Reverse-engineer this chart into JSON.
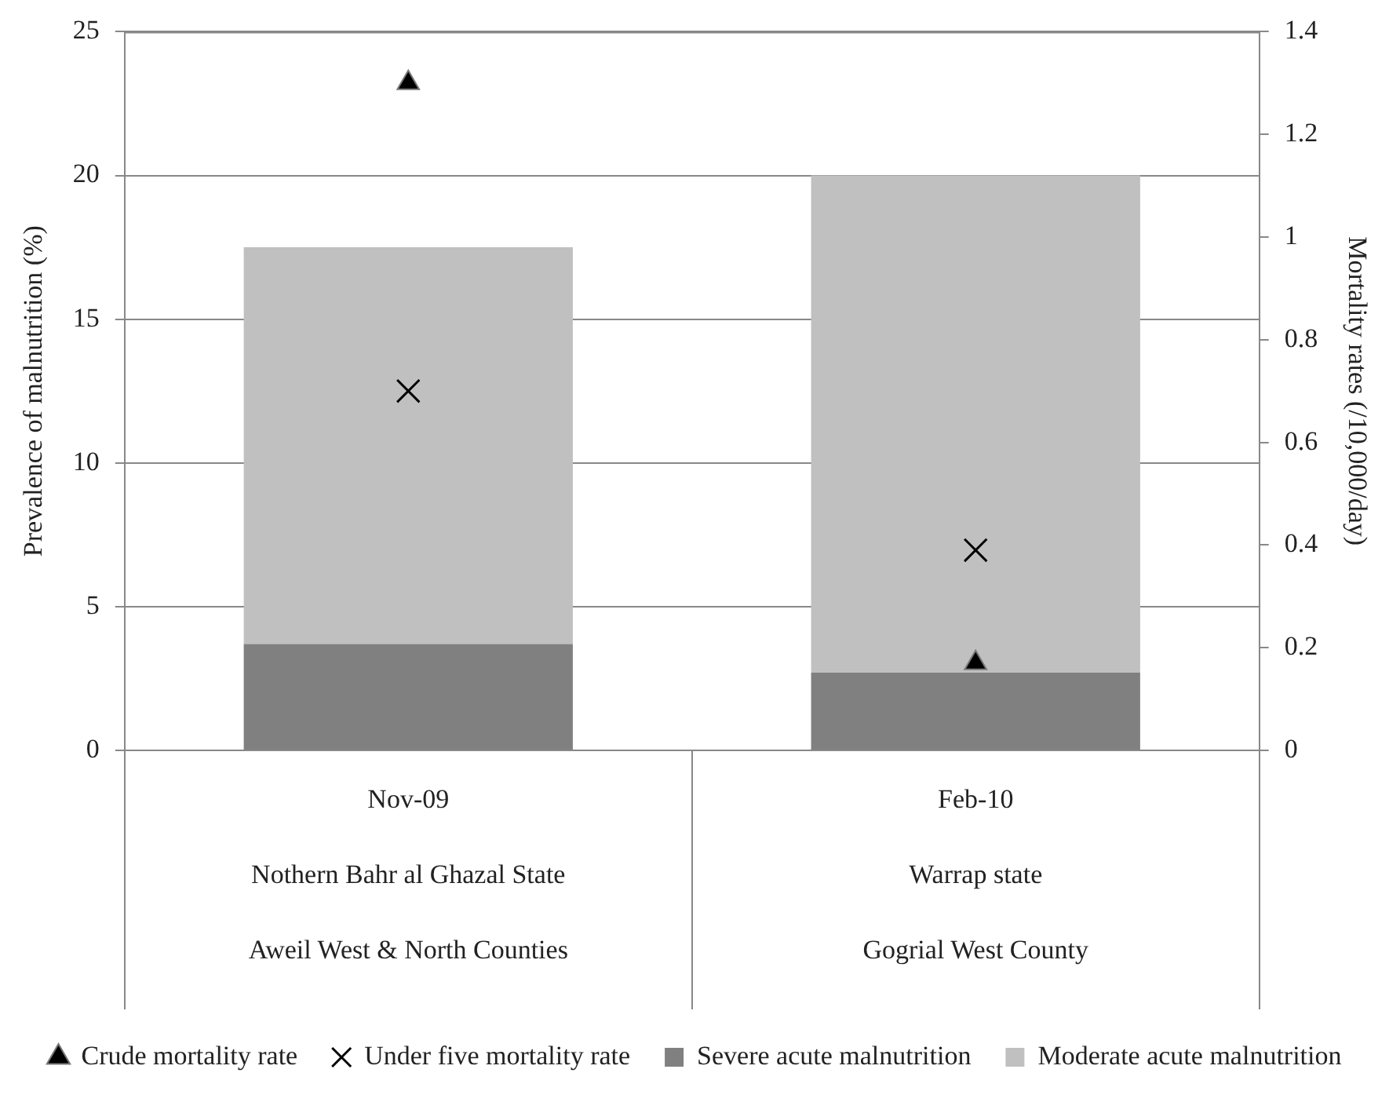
{
  "chart_data": {
    "type": "bar",
    "stacked": true,
    "categories": [
      "Nov-09\nNothern Bahr al Ghazal State\nAweil West & North Counties",
      "Feb-10\nWarrap state\nGogrial West County"
    ],
    "series": [
      {
        "name": "Severe acute malnutrition",
        "color": "#808080",
        "values": [
          3.7,
          2.7
        ]
      },
      {
        "name": "Moderate acute malnutrition",
        "color": "#c0c0c0",
        "values": [
          13.8,
          17.3
        ]
      },
      {
        "name": "Crude mortality rate",
        "type": "scatter",
        "axis": "y2",
        "marker": "triangle",
        "color": "#000000",
        "x": [
          "Nov-09\nNothern Bahr al Ghazal State\nAweil West & North Counties",
          "Feb-10\nWarrap state\nGogrial West County"
        ],
        "values": [
          1.3,
          0.17
        ]
      },
      {
        "name": "Under five mortality rate",
        "type": "scatter",
        "axis": "y2",
        "marker": "cross",
        "color": "#000000",
        "x": [
          "Nov-09\nNothern Bahr al Ghazal State\nAweil West & North Counties",
          "Feb-10\nWarrap state\nGogrial West County"
        ],
        "values": [
          0.7,
          0.39
        ]
      }
    ],
    "ylabel": "Prevalence of malnutrition (%)",
    "y2label": "Mortality rates (/10,000/day)",
    "ylim": [
      0,
      25
    ],
    "yticks": [
      0,
      5,
      10,
      15,
      20,
      25
    ],
    "y2lim": [
      0,
      1.4
    ],
    "y2ticks": [
      0,
      0.2,
      0.4,
      0.6,
      0.8,
      1,
      1.2,
      1.4
    ],
    "grid": "y",
    "legend": "bottom"
  }
}
